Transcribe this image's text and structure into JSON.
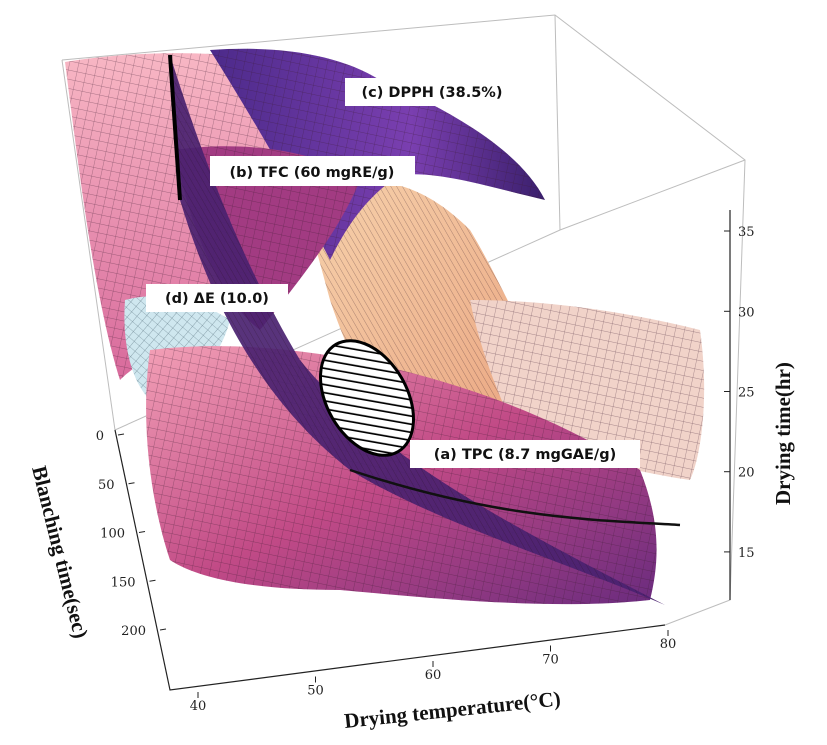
{
  "chart_data": {
    "type": "surface",
    "title": "",
    "axes": {
      "x": {
        "label": "Drying temperature(°C)",
        "ticks": [
          "40",
          "50",
          "60",
          "70",
          "80"
        ],
        "range": [
          40,
          80
        ]
      },
      "y": {
        "label": "Blanching time(sec)",
        "ticks": [
          "0",
          "50",
          "100",
          "150",
          "200"
        ],
        "range": [
          0,
          200
        ]
      },
      "z": {
        "label": "Drying time(hr)",
        "ticks": [
          "15",
          "20",
          "25",
          "30",
          "35"
        ],
        "range": [
          12,
          36
        ]
      }
    },
    "annotations": [
      {
        "id": "a",
        "text": "(a) TPC (8.7 mgGAE/g)"
      },
      {
        "id": "b",
        "text": "(b) TFC (60 mgRE/g)"
      },
      {
        "id": "c",
        "text": "(c) DPPH (38.5%)"
      },
      {
        "id": "d",
        "text": "(d) ΔE (10.0)"
      }
    ],
    "optimal_region": "hatched-ellipse",
    "grid": false,
    "colors": {
      "magenta": "#b0407a",
      "purple": "#5a2f90",
      "pink": "#f19ab0",
      "peach": "#f4c9a0",
      "lightblue": "#cfe7ef"
    }
  }
}
